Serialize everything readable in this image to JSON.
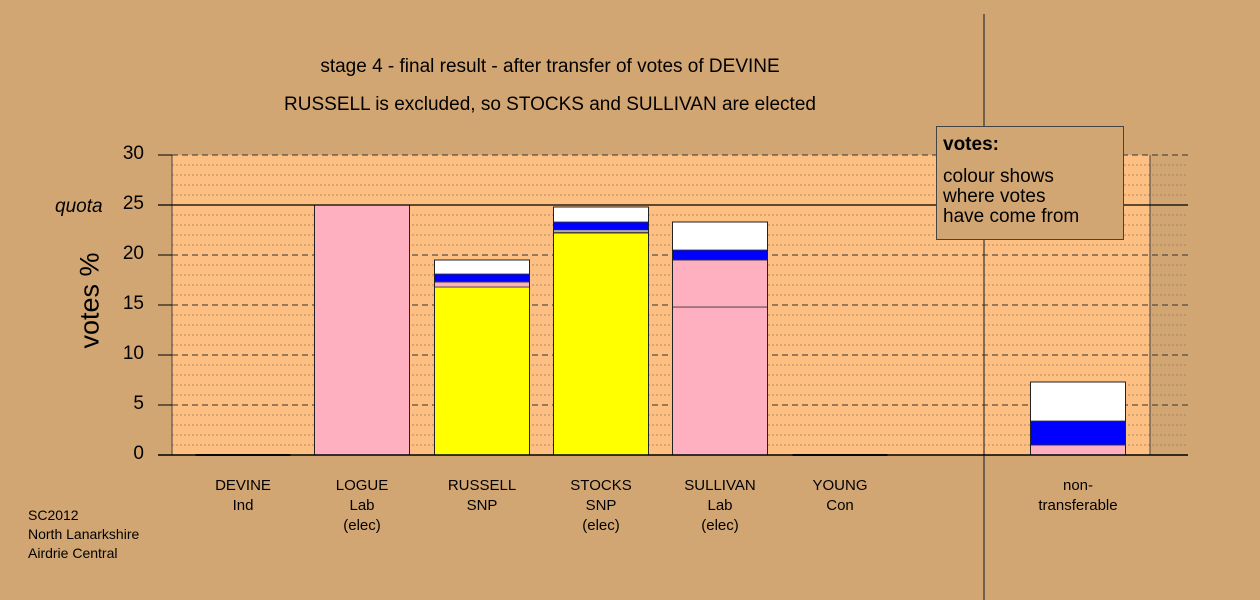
{
  "chart_data": {
    "type": "bar",
    "stacked": true,
    "title": "stage 4 - final result - after transfer of votes of DEVINE",
    "subtitle": "RUSSELL is excluded, so STOCKS and SULLIVAN are elected",
    "ylabel": "votes %",
    "ylim": [
      0,
      30
    ],
    "yticks": [
      "0",
      "5",
      "10",
      "15",
      "20",
      "25",
      "30"
    ],
    "quota": {
      "value": 25,
      "label": "quota"
    },
    "grid": true,
    "segment_colors": {
      "yellow": "#ffff00",
      "pink": "#ffb0c0",
      "blue": "#0000ff",
      "white": "#ffffff"
    },
    "categories": [
      {
        "lines": [
          "DEVINE",
          "Ind"
        ],
        "segments": []
      },
      {
        "lines": [
          "LOGUE",
          "Lab",
          "(elec)"
        ],
        "segments": [
          {
            "color": "pink",
            "value": 25.0
          }
        ]
      },
      {
        "lines": [
          "RUSSELL",
          "SNP"
        ],
        "segments": [
          {
            "color": "yellow",
            "value": 16.8
          },
          {
            "color": "pink",
            "value": 0.5
          },
          {
            "color": "white",
            "value": 0.05
          },
          {
            "color": "blue",
            "value": 0.75
          },
          {
            "color": "white",
            "value": 1.4
          }
        ]
      },
      {
        "lines": [
          "STOCKS",
          "SNP",
          "(elec)"
        ],
        "segments": [
          {
            "color": "yellow",
            "value": 22.2
          },
          {
            "color": "pink",
            "value": 0.1
          },
          {
            "color": "white",
            "value": 0.2
          },
          {
            "color": "blue",
            "value": 0.8
          },
          {
            "color": "white",
            "value": 1.5
          }
        ]
      },
      {
        "lines": [
          "SULLIVAN",
          "Lab",
          "(elec)"
        ],
        "segments": [
          {
            "color": "pink",
            "value": 14.8
          },
          {
            "color": "pink",
            "value": 4.7
          },
          {
            "color": "blue",
            "value": 1.0
          },
          {
            "color": "white",
            "value": 2.8
          }
        ]
      },
      {
        "lines": [
          "YOUNG",
          "Con"
        ],
        "segments": []
      },
      {
        "lines": [
          "non-",
          "transferable"
        ],
        "segments": [
          {
            "color": "pink",
            "value": 1.0
          },
          {
            "color": "blue",
            "value": 2.4
          },
          {
            "color": "white",
            "value": 3.9
          }
        ]
      }
    ],
    "legend": {
      "title": "votes:",
      "lines": [
        "colour shows",
        "where votes",
        "have come from"
      ],
      "placement": "top-right"
    }
  },
  "source": [
    "SC2012",
    "North Lanarkshire",
    "Airdrie Central"
  ]
}
